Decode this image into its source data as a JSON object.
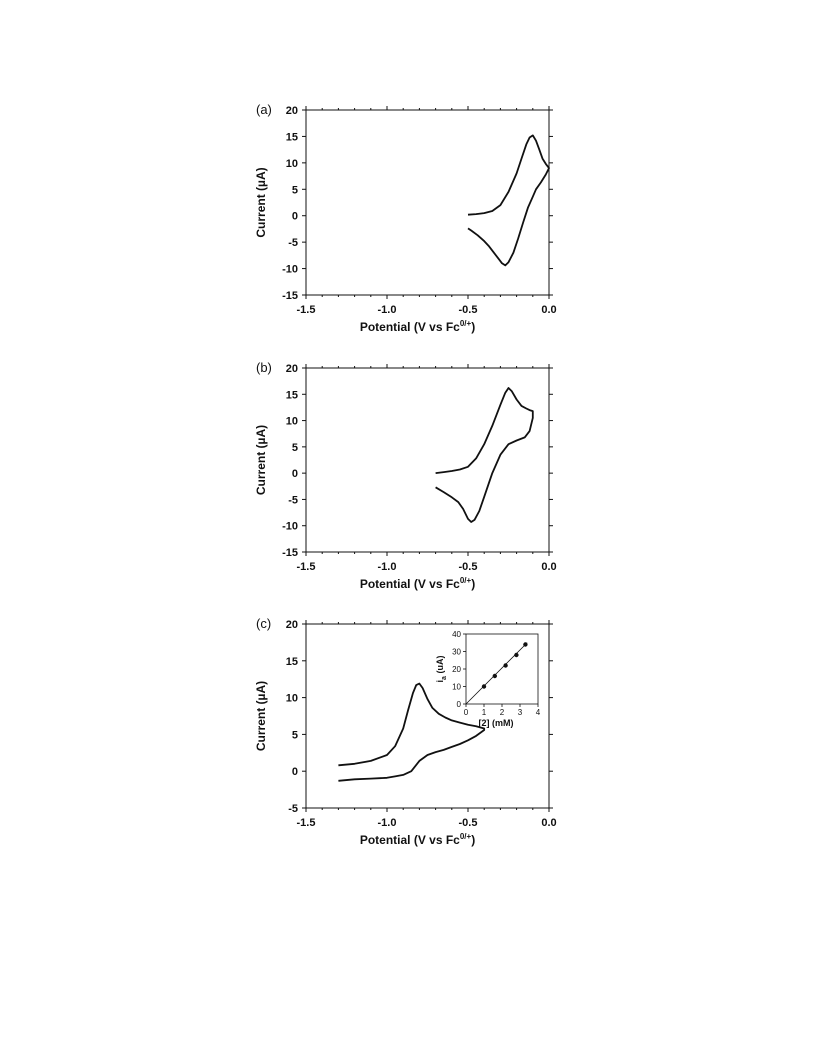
{
  "chart_data": [
    {
      "type": "line",
      "panel_label": "(a)",
      "xlabel": "Potential (V vs Fc",
      "xlabel_sup": "0/+",
      "xlabel_end": ")",
      "ylabel": "Current (µA)",
      "xlim": [
        -1.5,
        0.0
      ],
      "ylim": [
        -15,
        20
      ],
      "x_ticks": [
        -1.5,
        -1.0,
        -0.5,
        0.0
      ],
      "x_tick_labels": [
        "-1.5",
        "-1.0",
        "-0.5",
        "0.0"
      ],
      "y_ticks": [
        -15,
        -10,
        -5,
        0,
        5,
        10,
        15,
        20
      ],
      "y_tick_labels": [
        "-15",
        "-10",
        "-5",
        "0",
        "5",
        "10",
        "15",
        "20"
      ],
      "series": [
        {
          "x": [
            -0.5,
            -0.45,
            -0.4,
            -0.35,
            -0.3,
            -0.25,
            -0.2,
            -0.17,
            -0.14,
            -0.12,
            -0.1,
            -0.08,
            -0.06,
            -0.04,
            -0.02,
            0.0,
            -0.02,
            -0.05,
            -0.08,
            -0.1,
            -0.13,
            -0.16,
            -0.19,
            -0.22,
            -0.25,
            -0.27,
            -0.29,
            -0.31,
            -0.34,
            -0.37,
            -0.4,
            -0.44,
            -0.48,
            -0.5
          ],
          "y": [
            0.2,
            0.3,
            0.5,
            0.9,
            2.0,
            4.5,
            8.0,
            10.8,
            13.5,
            14.8,
            15.2,
            14.2,
            12.5,
            10.8,
            9.8,
            9.0,
            7.8,
            6.3,
            5.0,
            3.6,
            1.5,
            -1.3,
            -4.3,
            -7.0,
            -8.8,
            -9.4,
            -9.0,
            -8.2,
            -7.0,
            -5.8,
            -4.8,
            -3.7,
            -2.8,
            -2.4
          ]
        }
      ]
    },
    {
      "type": "line",
      "panel_label": "(b)",
      "xlabel": "Potential (V vs Fc",
      "xlabel_sup": "0/+",
      "xlabel_end": ")",
      "ylabel": "Current (µA)",
      "xlim": [
        -1.5,
        0.0
      ],
      "ylim": [
        -15,
        20
      ],
      "x_ticks": [
        -1.5,
        -1.0,
        -0.5,
        0.0
      ],
      "x_tick_labels": [
        "-1.5",
        "-1.0",
        "-0.5",
        "0.0"
      ],
      "y_ticks": [
        -15,
        -10,
        -5,
        0,
        5,
        10,
        15,
        20
      ],
      "y_tick_labels": [
        "-15",
        "-10",
        "-5",
        "0",
        "5",
        "10",
        "15",
        "20"
      ],
      "series": [
        {
          "x": [
            -0.7,
            -0.65,
            -0.6,
            -0.55,
            -0.5,
            -0.45,
            -0.4,
            -0.35,
            -0.3,
            -0.27,
            -0.25,
            -0.23,
            -0.2,
            -0.17,
            -0.14,
            -0.12,
            -0.1,
            -0.1,
            -0.12,
            -0.15,
            -0.2,
            -0.25,
            -0.3,
            -0.35,
            -0.4,
            -0.43,
            -0.46,
            -0.48,
            -0.5,
            -0.53,
            -0.56,
            -0.6,
            -0.65,
            -0.7
          ],
          "y": [
            0.0,
            0.2,
            0.4,
            0.7,
            1.2,
            2.8,
            5.5,
            9.0,
            13.0,
            15.3,
            16.2,
            15.6,
            14.0,
            12.8,
            12.3,
            12.0,
            11.8,
            10.5,
            8.0,
            6.8,
            6.2,
            5.5,
            3.5,
            0.0,
            -4.5,
            -7.2,
            -8.9,
            -9.3,
            -8.7,
            -6.8,
            -5.5,
            -4.6,
            -3.6,
            -2.7
          ]
        }
      ]
    },
    {
      "type": "line",
      "panel_label": "(c)",
      "xlabel": "Potential (V vs Fc",
      "xlabel_sup": "0/+",
      "xlabel_end": ")",
      "ylabel": "Current (µA)",
      "xlim": [
        -1.5,
        0.0
      ],
      "ylim": [
        -5,
        20
      ],
      "x_ticks": [
        -1.5,
        -1.0,
        -0.5,
        0.0
      ],
      "x_tick_labels": [
        "-1.5",
        "-1.0",
        "-0.5",
        "0.0"
      ],
      "y_ticks": [
        -5,
        0,
        5,
        10,
        15,
        20
      ],
      "y_tick_labels": [
        "-5",
        "0",
        "5",
        "10",
        "15",
        "20"
      ],
      "series": [
        {
          "x": [
            -1.3,
            -1.2,
            -1.1,
            -1.0,
            -0.95,
            -0.9,
            -0.87,
            -0.84,
            -0.82,
            -0.8,
            -0.78,
            -0.75,
            -0.72,
            -0.68,
            -0.64,
            -0.6,
            -0.55,
            -0.5,
            -0.45,
            -0.4,
            -0.4,
            -0.45,
            -0.5,
            -0.55,
            -0.6,
            -0.65,
            -0.7,
            -0.75,
            -0.8,
            -0.85,
            -0.9,
            -0.95,
            -1.0,
            -1.1,
            -1.2,
            -1.3
          ],
          "y": [
            0.8,
            1.0,
            1.4,
            2.2,
            3.4,
            5.8,
            8.3,
            10.6,
            11.7,
            11.9,
            11.3,
            9.8,
            8.6,
            7.8,
            7.3,
            6.9,
            6.6,
            6.3,
            6.1,
            5.8,
            5.6,
            4.8,
            4.2,
            3.7,
            3.3,
            2.9,
            2.6,
            2.2,
            1.4,
            0.0,
            -0.5,
            -0.7,
            -0.9,
            -1.0,
            -1.1,
            -1.3
          ]
        }
      ],
      "inset": {
        "type": "scatter",
        "xlabel": "[2] (mM)",
        "ylabel": "i",
        "ylabel_sub": "a",
        "ylabel_end": " (uA)",
        "xlim": [
          0,
          4
        ],
        "ylim": [
          0,
          40
        ],
        "x_ticks": [
          0,
          1,
          2,
          3,
          4
        ],
        "x_tick_labels": [
          "0",
          "1",
          "2",
          "3",
          "4"
        ],
        "y_ticks": [
          0,
          10,
          20,
          30,
          40
        ],
        "y_tick_labels": [
          "0",
          "10",
          "20",
          "30",
          "40"
        ],
        "points": {
          "x": [
            1.0,
            1.6,
            2.2,
            2.8,
            3.3
          ],
          "y": [
            10.0,
            16.0,
            22.0,
            28.0,
            34.0
          ]
        },
        "fit_line": {
          "x": [
            0.0,
            3.4
          ],
          "y": [
            0.0,
            35.0
          ]
        }
      }
    }
  ]
}
